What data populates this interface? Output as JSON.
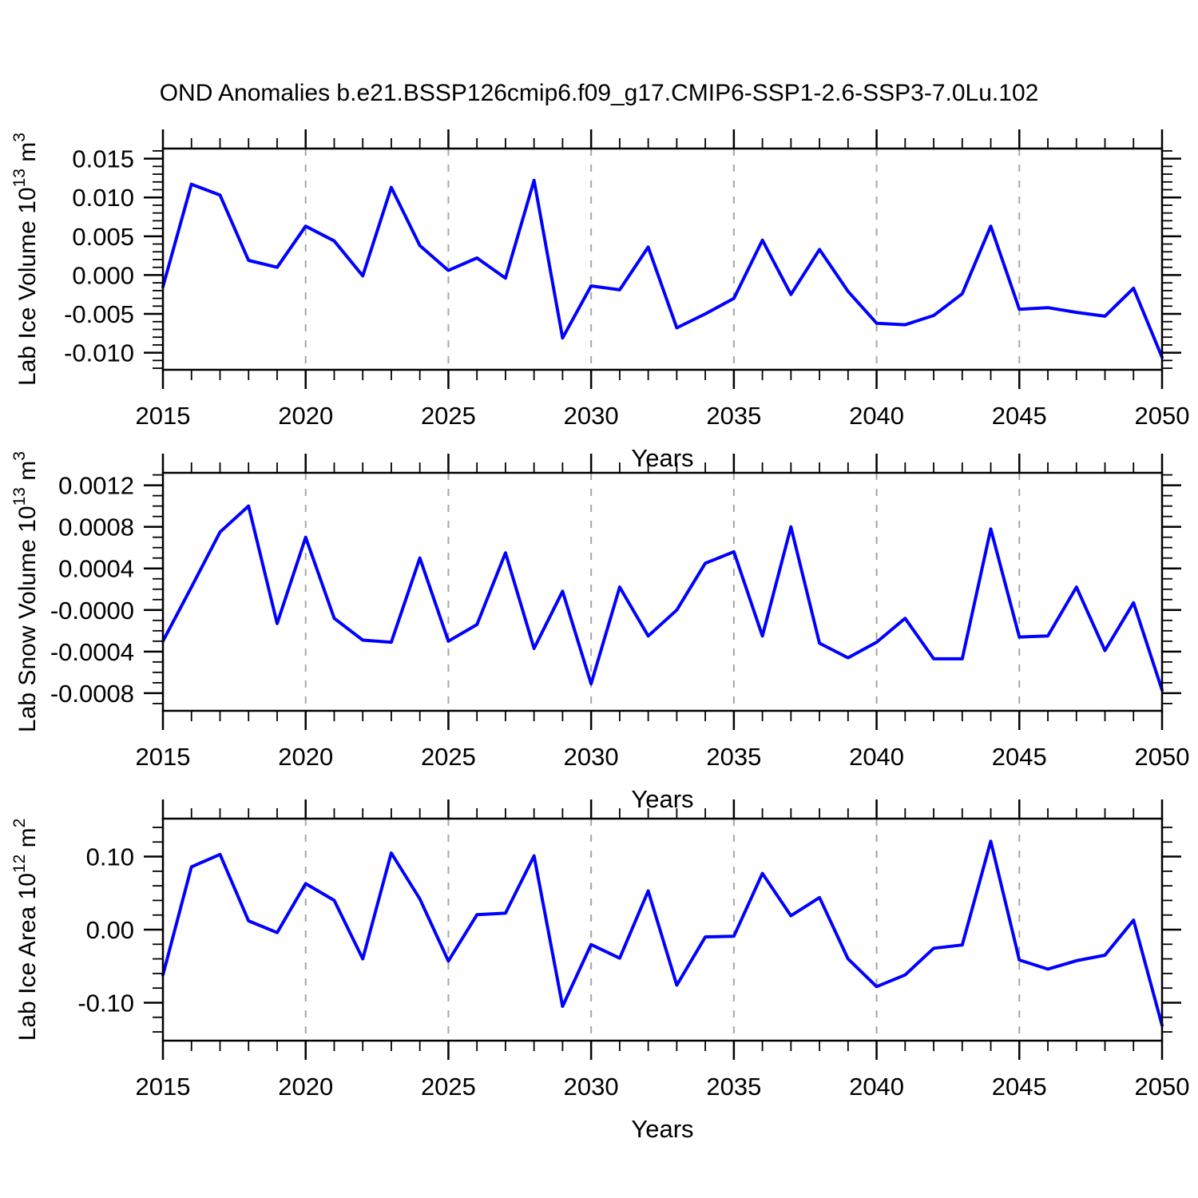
{
  "title": "OND Anomalies b.e21.BSSP126cmip6.f09_g17.CMIP6-SSP1-2.6-SSP3-7.0Lu.102",
  "colors": {
    "line": "#0000ff",
    "grid": "#a6a6a6",
    "axis": "#000000",
    "text": "#000000",
    "background": "#ffffff"
  },
  "x_axis": {
    "label": "Years",
    "start": 2015,
    "end": 2050,
    "major_ticks": [
      {
        "value": 2015,
        "label": "2015"
      },
      {
        "value": 2020,
        "label": "2020"
      },
      {
        "value": 2025,
        "label": "2025"
      },
      {
        "value": 2030,
        "label": "2030"
      },
      {
        "value": 2035,
        "label": "2035"
      },
      {
        "value": 2040,
        "label": "2040"
      },
      {
        "value": 2045,
        "label": "2045"
      },
      {
        "value": 2050,
        "label": "2050"
      }
    ],
    "minor_tick_step": 1,
    "grid_years": [
      2020,
      2025,
      2030,
      2035,
      2040,
      2045
    ],
    "grid_style": "dashed"
  },
  "years": [
    2015,
    2016,
    2017,
    2018,
    2019,
    2020,
    2021,
    2022,
    2023,
    2024,
    2025,
    2026,
    2027,
    2028,
    2029,
    2030,
    2031,
    2032,
    2033,
    2034,
    2035,
    2036,
    2037,
    2038,
    2039,
    2040,
    2041,
    2042,
    2043,
    2044,
    2045,
    2046,
    2047,
    2048,
    2049,
    2050
  ],
  "chart_data": [
    {
      "type": "line",
      "name": "Lab Ice Volume",
      "ylabel": "Lab Ice Volume 10^13 m^3",
      "ylabel_parts": [
        {
          "t": "Lab Ice Volume 10",
          "sup": false
        },
        {
          "t": "13",
          "sup": true
        },
        {
          "t": " m",
          "sup": false
        },
        {
          "t": "3",
          "sup": true
        }
      ],
      "xlabel": "Years",
      "ylim": [
        -0.0122,
        0.0163
      ],
      "yticks": [
        {
          "value": 0.015,
          "label": "0.015"
        },
        {
          "value": 0.01,
          "label": "0.010"
        },
        {
          "value": 0.005,
          "label": "0.005"
        },
        {
          "value": 0.0,
          "label": "0.000"
        },
        {
          "value": -0.005,
          "label": "-0.005"
        },
        {
          "value": -0.01,
          "label": "-0.010"
        }
      ],
      "y_minor_step": 0.001,
      "y_major_every": 5,
      "values": [
        -0.0015,
        0.0117,
        0.0103,
        0.0019,
        0.001,
        0.0063,
        0.0044,
        -0.0001,
        0.0113,
        0.0038,
        0.0006,
        0.0022,
        -0.0004,
        0.0122,
        -0.0081,
        -0.0014,
        -0.0019,
        0.0036,
        -0.0068,
        -0.005,
        -0.003,
        0.0045,
        -0.0025,
        0.0033,
        -0.0021,
        -0.0062,
        -0.0064,
        -0.0052,
        -0.0024,
        0.0063,
        -0.0044,
        -0.0042,
        -0.0048,
        -0.0053,
        -0.0017,
        -0.0106
      ]
    },
    {
      "type": "line",
      "name": "Lab Snow Volume",
      "ylabel": "Lab Snow Volume 10^13 m^3",
      "ylabel_parts": [
        {
          "t": "Lab Snow Volume 10",
          "sup": false
        },
        {
          "t": "13",
          "sup": true
        },
        {
          "t": " m",
          "sup": false
        },
        {
          "t": "3",
          "sup": true
        }
      ],
      "xlabel": "Years",
      "ylim": [
        -0.00097,
        0.00132
      ],
      "yticks": [
        {
          "value": 0.0012,
          "label": "0.0012"
        },
        {
          "value": 0.0008,
          "label": "0.0008"
        },
        {
          "value": 0.0004,
          "label": "0.0004"
        },
        {
          "value": 0.0,
          "label": "-0.0000"
        },
        {
          "value": -0.0004,
          "label": "-0.0004"
        },
        {
          "value": -0.0008,
          "label": "-0.0008"
        }
      ],
      "y_minor_step": 0.0001,
      "y_major_every": 4,
      "values": [
        -0.0003,
        0.00022,
        0.00075,
        0.001,
        -0.00013,
        0.0007,
        -8e-05,
        -0.00029,
        -0.00031,
        0.0005,
        -0.0003,
        -0.00014,
        0.00055,
        -0.00037,
        0.00018,
        -0.00071,
        0.00022,
        -0.00025,
        0.0,
        0.00045,
        0.00056,
        -0.00025,
        0.0008,
        -0.00032,
        -0.00046,
        -0.00031,
        -8e-05,
        -0.00047,
        -0.00047,
        0.00078,
        -0.00026,
        -0.00025,
        0.00022,
        -0.00039,
        7e-05,
        -0.00077
      ]
    },
    {
      "type": "line",
      "name": "Lab Ice Area",
      "ylabel": "Lab Ice Area 10^12 m^2",
      "ylabel_parts": [
        {
          "t": "Lab Ice Area 10",
          "sup": false
        },
        {
          "t": "12",
          "sup": true
        },
        {
          "t": " m",
          "sup": false
        },
        {
          "t": "2",
          "sup": true
        }
      ],
      "xlabel": "Years",
      "ylim": [
        -0.152,
        0.152
      ],
      "yticks": [
        {
          "value": 0.1,
          "label": "0.10"
        },
        {
          "value": 0.0,
          "label": "0.00"
        },
        {
          "value": -0.1,
          "label": "-0.10"
        }
      ],
      "y_minor_step": 0.02,
      "y_major_every": 5,
      "values": [
        -0.062,
        0.086,
        0.103,
        0.012,
        -0.004,
        0.063,
        0.04,
        -0.04,
        0.105,
        0.042,
        -0.043,
        0.0205,
        0.0225,
        0.101,
        -0.105,
        -0.0205,
        -0.039,
        0.053,
        -0.076,
        -0.01,
        -0.009,
        0.077,
        0.019,
        0.044,
        -0.04,
        -0.078,
        -0.062,
        -0.0255,
        -0.021,
        0.121,
        -0.0415,
        -0.054,
        -0.0425,
        -0.035,
        0.013,
        -0.131
      ]
    }
  ]
}
